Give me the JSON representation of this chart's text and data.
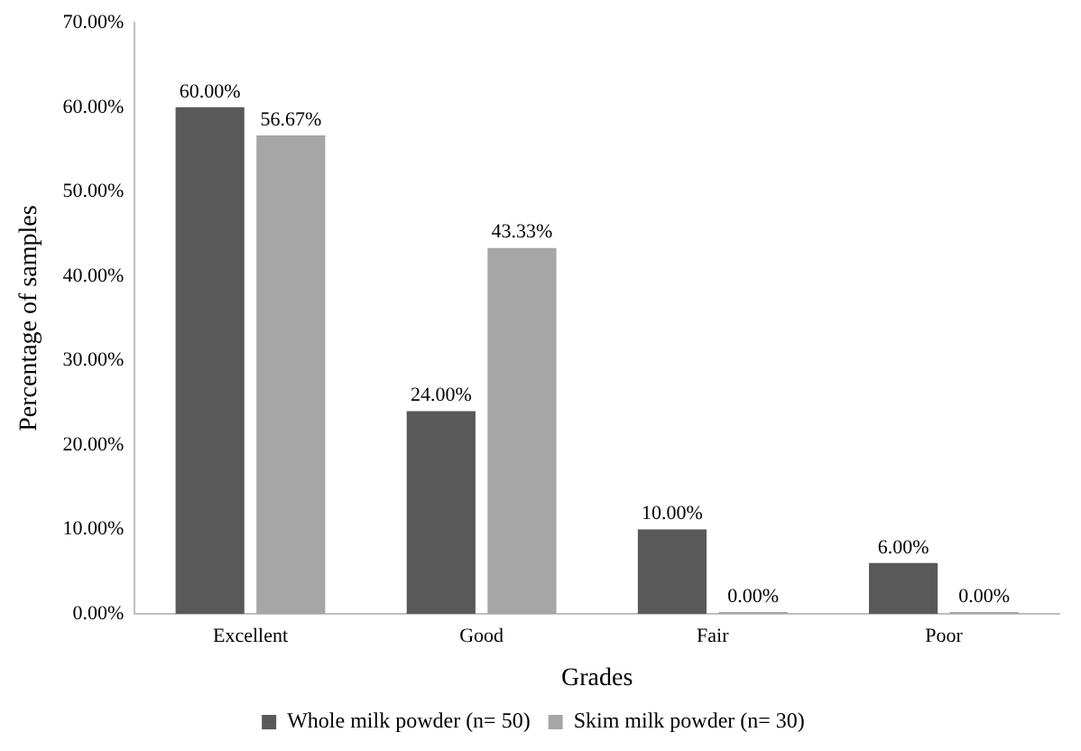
{
  "chart_data": {
    "type": "bar",
    "xlabel": "Grades",
    "ylabel": "Percentage of samples",
    "categories": [
      "Excellent",
      "Good",
      "Fair",
      "Poor"
    ],
    "series": [
      {
        "name": "Whole milk powder (n= 50)",
        "color": "#595959",
        "values": [
          60,
          24,
          10,
          6
        ],
        "value_labels": [
          "60.00%",
          "24.00%",
          "10.00%",
          "6.00%"
        ]
      },
      {
        "name": "Skim milk powder (n= 30)",
        "color": "#a6a6a6",
        "values": [
          56.67,
          43.33,
          0,
          0
        ],
        "value_labels": [
          "56.67%",
          "43.33%",
          "0.00%",
          "0.00%"
        ]
      }
    ],
    "ylim": [
      0,
      70
    ],
    "yticks": [
      {
        "value": 0,
        "label": "0.00%"
      },
      {
        "value": 10,
        "label": "10.00%"
      },
      {
        "value": 20,
        "label": "20.00%"
      },
      {
        "value": 30,
        "label": "30.00%"
      },
      {
        "value": 40,
        "label": "40.00%"
      },
      {
        "value": 50,
        "label": "50.00%"
      },
      {
        "value": 60,
        "label": "60.00%"
      },
      {
        "value": 70,
        "label": "70.00%"
      }
    ],
    "grid": false,
    "legend": "bottom"
  }
}
